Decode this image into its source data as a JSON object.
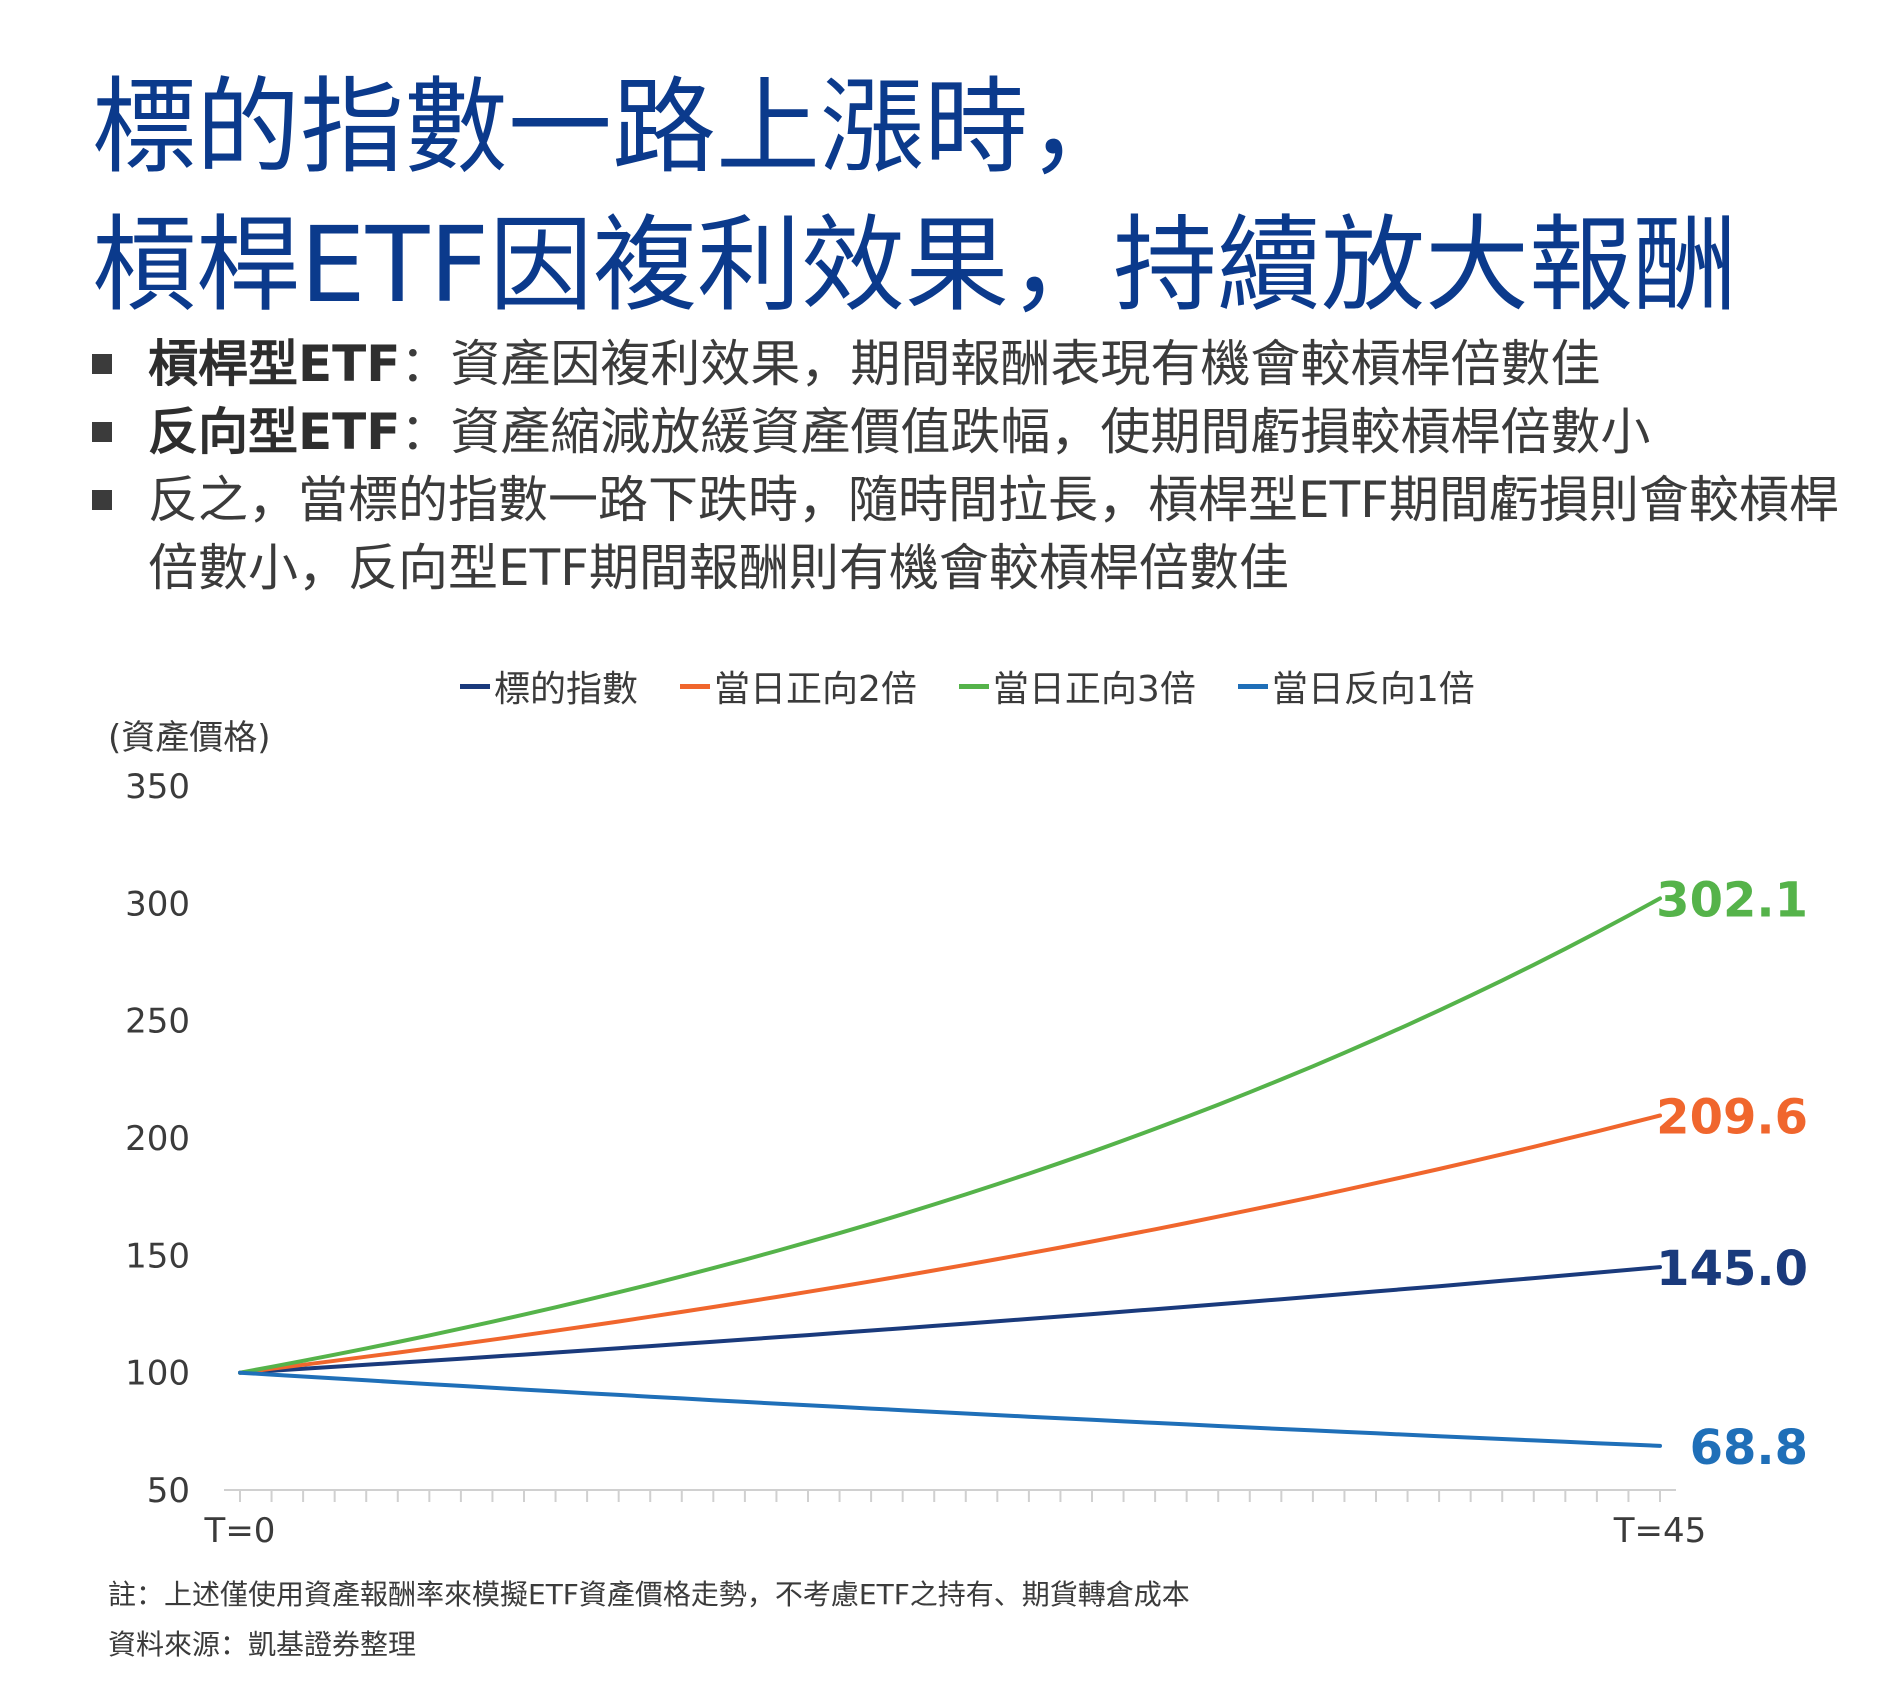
{
  "title": {
    "line1": "標的指數一路上漲時，",
    "line2": "槓桿ETF因複利效果，持續放大報酬"
  },
  "bullets": [
    {
      "bold": "槓桿型ETF",
      "text": "：資產因複利效果，期間報酬表現有機會較槓桿倍數佳"
    },
    {
      "bold": "反向型ETF",
      "text": "：資產縮減放緩資產價值跌幅，使期間虧損較槓桿倍數小"
    },
    {
      "bold": "",
      "text": "反之，當標的指數一路下跌時，隨時間拉長，槓桿型ETF期間虧損則會較槓桿倍數小，反向型ETF期間報酬則有機會較槓桿倍數佳"
    }
  ],
  "footer": {
    "note": "註：上述僅使用資產報酬率來模擬ETF資產價格走勢，不考慮ETF之持有、期貨轉倉成本",
    "source": "資料來源：凱基證券整理"
  },
  "chart_data": {
    "type": "line",
    "ylabel": "(資產價格)",
    "xlabel": "",
    "ylim": [
      50,
      350
    ],
    "yticks": [
      50,
      100,
      150,
      200,
      250,
      300,
      350
    ],
    "xlim": [
      0,
      45
    ],
    "xtick_labels": [
      "T=0",
      "T=45"
    ],
    "legend_position": "top",
    "grid": false,
    "series": [
      {
        "name": "標的指數",
        "color": "#1a3a7c",
        "start": 100,
        "end": 145.0,
        "end_label": "145.0"
      },
      {
        "name": "當日正向2倍",
        "color": "#f0662d",
        "start": 100,
        "end": 209.6,
        "end_label": "209.6"
      },
      {
        "name": "當日正向3倍",
        "color": "#55b34a",
        "start": 100,
        "end": 302.1,
        "end_label": "302.1"
      },
      {
        "name": "當日反向1倍",
        "color": "#1f6fb8",
        "start": 100,
        "end": 68.8,
        "end_label": "68.8"
      }
    ]
  }
}
